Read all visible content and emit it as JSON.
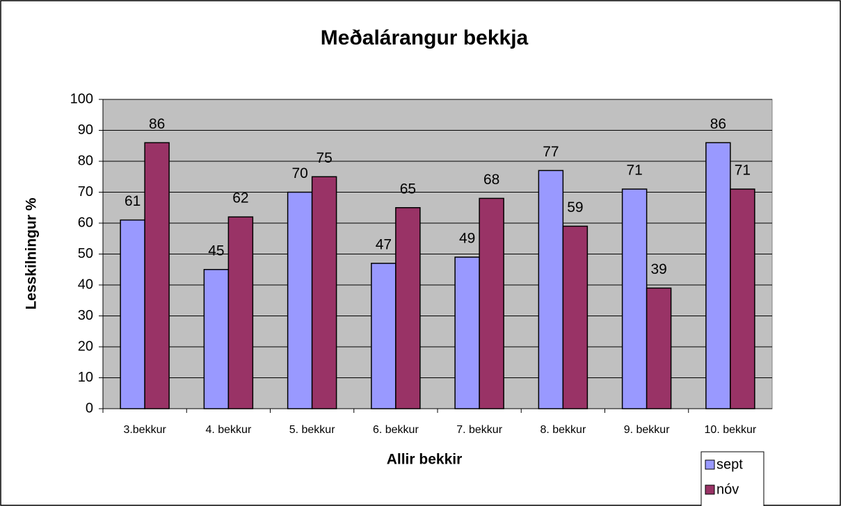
{
  "chart_data": {
    "type": "bar",
    "title": "Meðalárangur bekkja",
    "x_label": "Allir bekkir",
    "y_label": "Lesskilningur %",
    "categories": [
      "3.bekkur",
      "4. bekkur",
      "5. bekkur",
      "6. bekkur",
      "7. bekkur",
      "8. bekkur",
      "9. bekkur",
      "10. bekkur"
    ],
    "series": [
      {
        "name": "sept",
        "color": "#9999ff",
        "values": [
          61,
          45,
          70,
          47,
          49,
          77,
          71,
          86
        ]
      },
      {
        "name": "nóv",
        "color": "#993366",
        "values": [
          86,
          62,
          75,
          65,
          68,
          59,
          39,
          71
        ]
      }
    ],
    "ylim": [
      0,
      100
    ],
    "yticks": [
      0,
      10,
      20,
      30,
      40,
      50,
      60,
      70,
      80,
      90,
      100
    ],
    "grid": true,
    "legend": "bottom-right",
    "plot_background": "#c0c0c0"
  }
}
